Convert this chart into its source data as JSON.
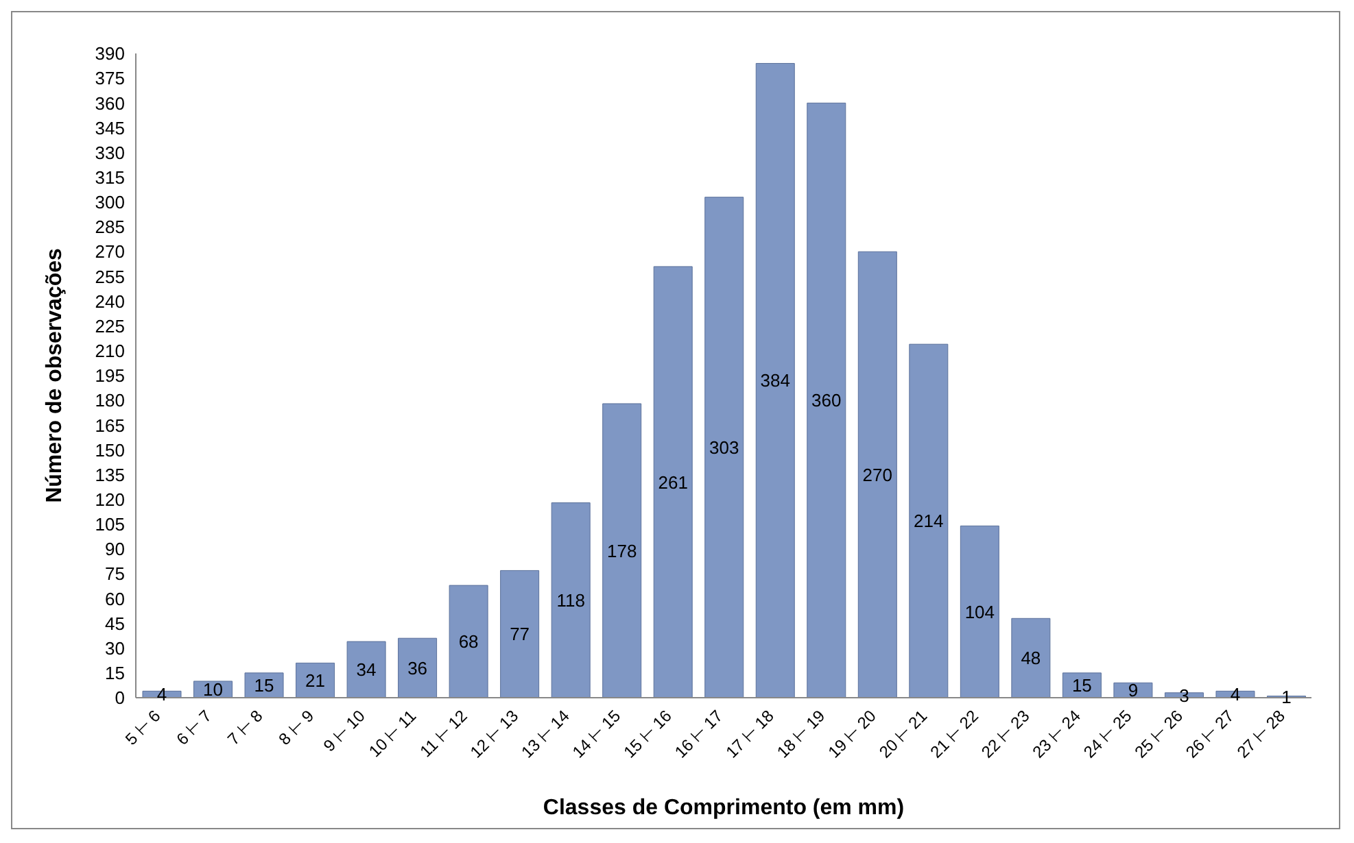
{
  "chart_data": {
    "type": "bar",
    "xlabel": "Classes de Comprimento (em mm)",
    "ylabel": "Número de observações",
    "categories": [
      "5 ⊢ 6",
      "6 ⊢ 7",
      "7 ⊢ 8",
      "8 ⊢ 9",
      "9 ⊢ 10",
      "10 ⊢ 11",
      "11 ⊢ 12",
      "12 ⊢ 13",
      "13 ⊢ 14",
      "14 ⊢ 15",
      "15 ⊢ 16",
      "16 ⊢ 17",
      "17 ⊢ 18",
      "18 ⊢ 19",
      "19 ⊢ 20",
      "20 ⊢ 21",
      "21 ⊢ 22",
      "22 ⊢ 23",
      "23 ⊢ 24",
      "24 ⊢ 25",
      "25 ⊢ 26",
      "26 ⊢ 27",
      "27 ⊢ 28"
    ],
    "values": [
      4,
      10,
      15,
      21,
      34,
      36,
      68,
      77,
      118,
      178,
      261,
      303,
      384,
      360,
      270,
      214,
      104,
      48,
      15,
      9,
      3,
      4,
      1
    ],
    "color": "#7f97c4",
    "data_labels": true,
    "grid": false,
    "legend": false,
    "ylim": [
      0,
      390
    ],
    "yticks": [
      0,
      15,
      30,
      45,
      60,
      75,
      90,
      105,
      120,
      135,
      150,
      165,
      180,
      195,
      210,
      225,
      240,
      255,
      270,
      285,
      300,
      315,
      330,
      345,
      360,
      375,
      390
    ]
  }
}
